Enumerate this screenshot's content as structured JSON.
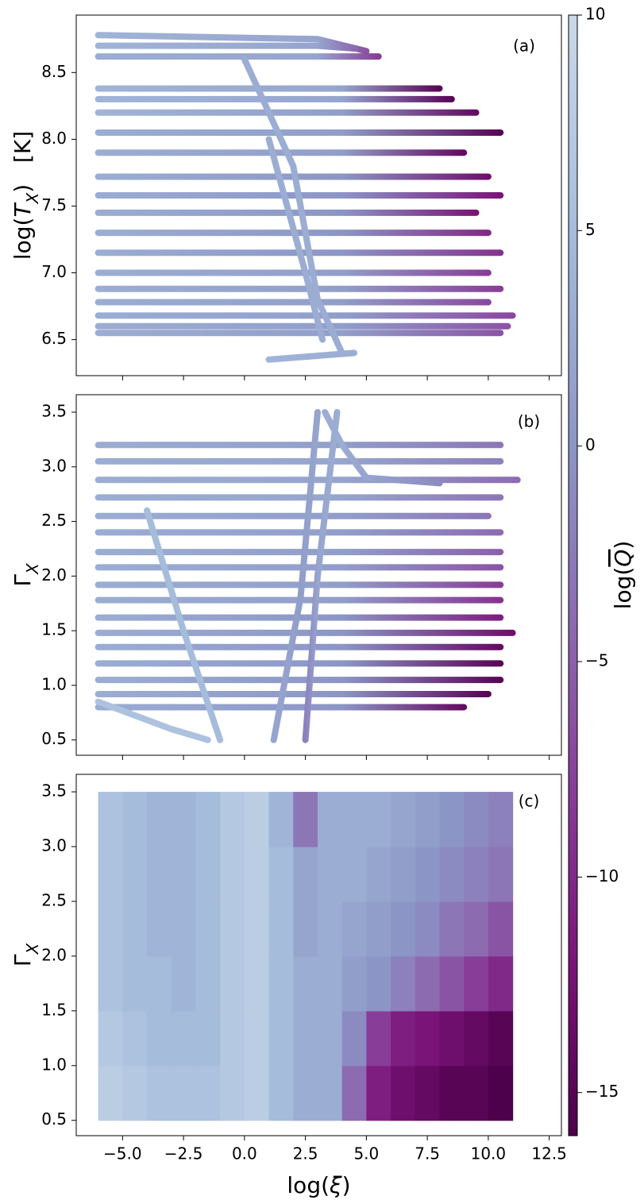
{
  "chart_data": [
    {
      "type": "tracks",
      "annotation": "(a)",
      "ylabel": [
        {
          "text": "log("
        },
        {
          "text": "T",
          "style": "italic"
        },
        {
          "text": "X",
          "style": "sub"
        },
        {
          "text": ")   [K]"
        }
      ],
      "xlim": [
        -6.9,
        13.0
      ],
      "xticks": [
        -5,
        -2.5,
        0,
        2.5,
        5,
        7.5,
        10,
        12.5
      ],
      "ylim": [
        6.23,
        8.93
      ],
      "yticks": [
        {
          "value": 6.5,
          "label": "6.5"
        },
        {
          "value": 7,
          "label": "7.0"
        },
        {
          "value": 7.5,
          "label": "7.5"
        },
        {
          "value": 8,
          "label": "8.0"
        },
        {
          "value": 8.5,
          "label": "8.5"
        }
      ],
      "series": [
        {
          "x": [
            -6,
            3,
            5
          ],
          "y": [
            8.78,
            8.75,
            8.66
          ],
          "q": [
            4,
            2,
            -6
          ]
        },
        {
          "x": [
            -6,
            3,
            4.5
          ],
          "y": [
            8.7,
            8.7,
            8.68
          ],
          "q": [
            4,
            2,
            -4
          ]
        },
        {
          "x": [
            -6,
            3,
            5.5
          ],
          "y": [
            8.62,
            8.62,
            8.62
          ],
          "q": [
            3,
            2,
            -8
          ]
        },
        {
          "x": [
            -6,
            4,
            8
          ],
          "y": [
            8.38,
            8.38,
            8.38
          ],
          "q": [
            4,
            2,
            -15
          ]
        },
        {
          "x": [
            -6,
            4,
            8.5
          ],
          "y": [
            8.3,
            8.3,
            8.3
          ],
          "q": [
            4,
            2,
            -15
          ]
        },
        {
          "x": [
            -6,
            4,
            9.5
          ],
          "y": [
            8.2,
            8.2,
            8.2
          ],
          "q": [
            4,
            1,
            -14
          ]
        },
        {
          "x": [
            -6,
            4,
            10.5
          ],
          "y": [
            8.05,
            8.05,
            8.05
          ],
          "q": [
            3,
            1,
            -15
          ]
        },
        {
          "x": [
            -6,
            4,
            9
          ],
          "y": [
            7.9,
            7.9,
            7.9
          ],
          "q": [
            3,
            1,
            -14
          ]
        },
        {
          "x": [
            -6,
            4,
            10
          ],
          "y": [
            7.72,
            7.72,
            7.72
          ],
          "q": [
            3,
            0,
            -13
          ]
        },
        {
          "x": [
            -6,
            4,
            10.5
          ],
          "y": [
            7.58,
            7.58,
            7.58
          ],
          "q": [
            3,
            0,
            -12
          ]
        },
        {
          "x": [
            -6,
            4,
            9.5
          ],
          "y": [
            7.45,
            7.45,
            7.45
          ],
          "q": [
            3,
            0,
            -12
          ]
        },
        {
          "x": [
            -6,
            4,
            10
          ],
          "y": [
            7.3,
            7.3,
            7.3
          ],
          "q": [
            3,
            0,
            -10
          ]
        },
        {
          "x": [
            -6,
            4,
            10.5
          ],
          "y": [
            7.15,
            7.15,
            7.15
          ],
          "q": [
            3,
            0,
            -9
          ]
        },
        {
          "x": [
            -6,
            4,
            10
          ],
          "y": [
            7.0,
            7.0,
            7.0
          ],
          "q": [
            3,
            1,
            -8
          ]
        },
        {
          "x": [
            -6,
            4,
            10.5
          ],
          "y": [
            6.88,
            6.88,
            6.88
          ],
          "q": [
            3,
            1,
            -8
          ]
        },
        {
          "x": [
            -6,
            4,
            10
          ],
          "y": [
            6.78,
            6.78,
            6.78
          ],
          "q": [
            3,
            1,
            -7
          ]
        },
        {
          "x": [
            -6,
            4,
            11
          ],
          "y": [
            6.68,
            6.68,
            6.68
          ],
          "q": [
            3,
            1,
            -7
          ]
        },
        {
          "x": [
            -6,
            4,
            10.8
          ],
          "y": [
            6.6,
            6.6,
            6.6
          ],
          "q": [
            3,
            1,
            -6
          ]
        },
        {
          "x": [
            -6,
            4,
            10.5
          ],
          "y": [
            6.55,
            6.55,
            6.55
          ],
          "q": [
            3,
            1,
            -6
          ]
        },
        {
          "x": [
            0,
            2,
            3,
            4
          ],
          "y": [
            8.6,
            7.8,
            6.8,
            6.4
          ],
          "q": [
            3,
            3,
            3,
            3
          ]
        },
        {
          "x": [
            1,
            2.5,
            3.2
          ],
          "y": [
            8.0,
            7.0,
            6.5
          ],
          "q": [
            3,
            3,
            3
          ]
        },
        {
          "x": [
            1,
            4.5
          ],
          "y": [
            6.35,
            6.4
          ],
          "q": [
            4,
            3
          ]
        }
      ]
    },
    {
      "type": "tracks",
      "annotation": "(b)",
      "ylabel": [
        {
          "text": "Γ"
        },
        {
          "text": "X",
          "style": "sub"
        }
      ],
      "xlim": [
        -6.9,
        13.0
      ],
      "xticks": [
        -5,
        -2.5,
        0,
        2.5,
        5,
        7.5,
        10,
        12.5
      ],
      "ylim": [
        0.36,
        3.66
      ],
      "yticks": [
        0.5,
        {
          "value": 1,
          "label": "1.0"
        },
        1.5,
        {
          "value": 2,
          "label": "2.0"
        },
        2.5,
        {
          "value": 3,
          "label": "3.0"
        },
        3.5
      ],
      "series": [
        {
          "x": [
            -6,
            4,
            10.5
          ],
          "y": [
            3.2,
            3.2,
            3.2
          ],
          "q": [
            3,
            1,
            -3
          ]
        },
        {
          "x": [
            -6,
            4,
            10.5
          ],
          "y": [
            3.05,
            3.05,
            3.05
          ],
          "q": [
            3,
            2,
            -2
          ]
        },
        {
          "x": [
            -6,
            4,
            11.2
          ],
          "y": [
            2.88,
            2.88,
            2.88
          ],
          "q": [
            3,
            2,
            -4
          ]
        },
        {
          "x": [
            -6,
            4,
            10.5
          ],
          "y": [
            2.72,
            2.72,
            2.72
          ],
          "q": [
            3,
            2,
            -3
          ]
        },
        {
          "x": [
            -6,
            4,
            10
          ],
          "y": [
            2.55,
            2.55,
            2.55
          ],
          "q": [
            3,
            1,
            -3
          ]
        },
        {
          "x": [
            -6,
            4,
            10.5
          ],
          "y": [
            2.4,
            2.4,
            2.4
          ],
          "q": [
            3,
            1,
            -4
          ]
        },
        {
          "x": [
            -6,
            4,
            10.5
          ],
          "y": [
            2.22,
            2.22,
            2.22
          ],
          "q": [
            3,
            1,
            -5
          ]
        },
        {
          "x": [
            -6,
            4,
            10.5
          ],
          "y": [
            2.08,
            2.08,
            2.08
          ],
          "q": [
            3,
            1,
            -6
          ]
        },
        {
          "x": [
            -6,
            4,
            10.5
          ],
          "y": [
            1.92,
            1.92,
            1.92
          ],
          "q": [
            3,
            1,
            -8
          ]
        },
        {
          "x": [
            -6,
            4,
            10.5
          ],
          "y": [
            1.78,
            1.78,
            1.78
          ],
          "q": [
            3,
            1,
            -9
          ]
        },
        {
          "x": [
            -6,
            4,
            10.5
          ],
          "y": [
            1.62,
            1.62,
            1.62
          ],
          "q": [
            3,
            0,
            -11
          ]
        },
        {
          "x": [
            -6,
            4,
            11
          ],
          "y": [
            1.48,
            1.48,
            1.48
          ],
          "q": [
            3,
            0,
            -13
          ]
        },
        {
          "x": [
            -6,
            4,
            10.5
          ],
          "y": [
            1.35,
            1.35,
            1.35
          ],
          "q": [
            3,
            0,
            -14
          ]
        },
        {
          "x": [
            -6,
            4,
            10.5
          ],
          "y": [
            1.2,
            1.2,
            1.2
          ],
          "q": [
            3,
            0,
            -15
          ]
        },
        {
          "x": [
            -6,
            4,
            10.5
          ],
          "y": [
            1.05,
            1.05,
            1.05
          ],
          "q": [
            3,
            0,
            -15
          ]
        },
        {
          "x": [
            -6,
            4,
            10
          ],
          "y": [
            0.92,
            0.92,
            0.92
          ],
          "q": [
            3,
            0,
            -15
          ]
        },
        {
          "x": [
            -6,
            4,
            9
          ],
          "y": [
            0.8,
            0.8,
            0.8
          ],
          "q": [
            3,
            0,
            -14
          ]
        },
        {
          "x": [
            -6,
            -3,
            -1.5
          ],
          "y": [
            0.85,
            0.6,
            0.5
          ],
          "q": [
            6,
            6,
            6
          ]
        },
        {
          "x": [
            -4,
            -2.5,
            -1
          ],
          "y": [
            2.6,
            1.5,
            0.5
          ],
          "q": [
            5,
            5,
            5
          ]
        },
        {
          "x": [
            1.2,
            2.3,
            3.0
          ],
          "y": [
            0.5,
            1.8,
            3.5
          ],
          "q": [
            2,
            1,
            2
          ]
        },
        {
          "x": [
            2.5,
            3.0,
            3.8
          ],
          "y": [
            0.5,
            2.0,
            3.5
          ],
          "q": [
            -2,
            2,
            3
          ]
        },
        {
          "x": [
            3.3,
            4.0,
            5.0,
            8
          ],
          "y": [
            3.5,
            3.2,
            2.9,
            2.85
          ],
          "q": [
            3,
            3,
            2,
            -1
          ]
        }
      ]
    },
    {
      "type": "heatmap",
      "annotation": "(c)",
      "ylabel": [
        {
          "text": "Γ"
        },
        {
          "text": "X",
          "style": "sub"
        }
      ],
      "xlabel": [
        {
          "text": "log("
        },
        {
          "text": "ξ",
          "style": "italic"
        },
        {
          "text": ")"
        }
      ],
      "xlim": [
        -6.9,
        13.0
      ],
      "xticks": [
        {
          "value": -5,
          "label": "−5.0"
        },
        {
          "value": -2.5,
          "label": "−2.5"
        },
        {
          "value": 0,
          "label": "0.0"
        },
        2.5,
        {
          "value": 5,
          "label": "5.0"
        },
        7.5,
        {
          "value": 10,
          "label": "10.0"
        },
        12.5
      ],
      "ylim": [
        0.36,
        3.66
      ],
      "yticks": [
        0.5,
        {
          "value": 1,
          "label": "1.0"
        },
        1.5,
        {
          "value": 2,
          "label": "2.0"
        },
        2.5,
        {
          "value": 3,
          "label": "3.0"
        },
        3.5
      ],
      "x_edges": [
        -6,
        -5,
        -4,
        -3,
        -2,
        -1,
        0,
        1,
        2,
        3,
        4,
        5,
        6,
        7,
        8,
        9,
        10,
        11
      ],
      "y_edges": [
        0.5,
        1.0,
        1.5,
        2.0,
        2.5,
        3.0,
        3.5
      ],
      "z": [
        [
          8,
          7,
          6,
          6,
          6,
          7,
          8,
          5,
          3,
          3,
          -4,
          -11,
          -13,
          -14,
          -15,
          -15,
          -16
        ],
        [
          7,
          6,
          5,
          5,
          5,
          7,
          8,
          5,
          3,
          3,
          -1,
          -8,
          -11,
          -12,
          -13,
          -14,
          -15
        ],
        [
          6,
          5,
          5,
          4,
          5,
          7,
          8,
          5,
          3,
          3,
          1,
          0,
          -2,
          -4,
          -6,
          -8,
          -10
        ],
        [
          6,
          5,
          4,
          4,
          5,
          7,
          8,
          5,
          2,
          3,
          2,
          1,
          0,
          -1,
          -3,
          -4,
          -6
        ],
        [
          6,
          5,
          4,
          4,
          5,
          7,
          8,
          5,
          2,
          3,
          3,
          2,
          1,
          0,
          -1,
          -2,
          -3
        ],
        [
          6,
          5,
          4,
          4,
          5,
          7,
          8,
          4,
          -3,
          3,
          3,
          3,
          2,
          1,
          0,
          -1,
          -2
        ]
      ]
    }
  ],
  "colorbar": {
    "label": [
      {
        "text": "log("
      },
      {
        "text": "Q",
        "style": "overline"
      },
      {
        "text": ")"
      }
    ],
    "lim": [
      -16,
      10
    ],
    "ticks": [
      {
        "value": -15,
        "label": "−15"
      },
      {
        "value": -10,
        "label": "−10"
      },
      {
        "value": -5,
        "label": "−5"
      },
      0,
      5,
      10
    ],
    "colormap": [
      {
        "value": -16,
        "color": "#4d004b"
      },
      {
        "value": -12,
        "color": "#7a1478"
      },
      {
        "value": -8,
        "color": "#883d98"
      },
      {
        "value": -4,
        "color": "#8c6bb1"
      },
      {
        "value": 0,
        "color": "#8c96c6"
      },
      {
        "value": 5,
        "color": "#a5bcdb"
      },
      {
        "value": 10,
        "color": "#cad9e9"
      }
    ]
  }
}
